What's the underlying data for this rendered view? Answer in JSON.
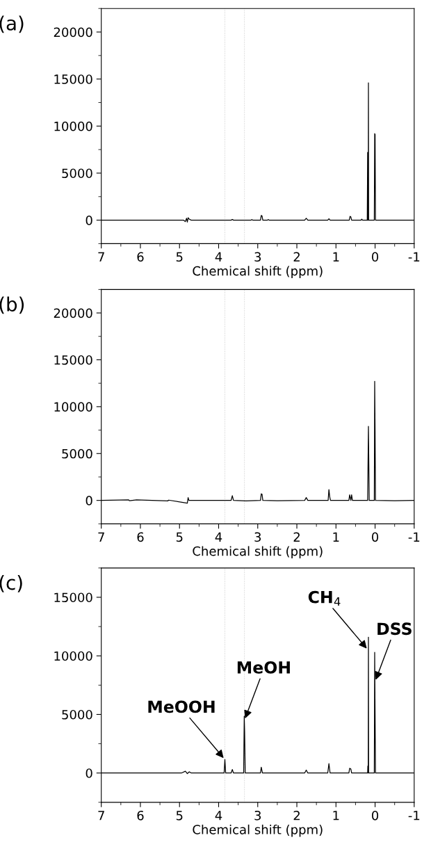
{
  "chart_data": [
    {
      "type": "line",
      "title": "(a)",
      "xlabel": "Chemical shift (ppm)",
      "xlim": [
        7,
        -1
      ],
      "xticks": [
        7,
        6,
        5,
        4,
        3,
        2,
        1,
        0,
        -1
      ],
      "ylim": [
        -2500,
        22500
      ],
      "yticks": [
        0,
        5000,
        10000,
        15000,
        20000
      ],
      "grid": false,
      "legend": false,
      "marker": "none",
      "line_style": "solid",
      "ref_lines": [
        {
          "axis": "x",
          "value": 3.84,
          "color": "#c8c8c8",
          "line_style": "dotted"
        },
        {
          "axis": "x",
          "value": 3.34,
          "color": "#c8c8c8",
          "line_style": "dotted"
        }
      ],
      "series": [
        {
          "color": "#000000",
          "x": [
            7,
            4.9,
            4.85,
            4.82,
            4.8,
            4.78,
            4.75,
            4.7,
            3.68,
            3.65,
            3.62,
            3.17,
            3.15,
            3.13,
            2.93,
            2.91,
            2.89,
            2.87,
            2.75,
            2.73,
            2.71,
            1.8,
            1.76,
            1.72,
            1.21,
            1.18,
            1.15,
            0.66,
            0.64,
            0.62,
            0.6,
            0.36,
            0.34,
            0.32,
            0.2,
            0.19,
            0.185,
            0.175,
            0.17,
            0.165,
            0.02,
            0.01,
            0.0,
            -0.01,
            -1
          ],
          "values": [
            0,
            0,
            -150,
            200,
            -200,
            250,
            100,
            0,
            0,
            80,
            0,
            0,
            60,
            0,
            0,
            500,
            450,
            0,
            0,
            60,
            0,
            0,
            200,
            0,
            0,
            150,
            0,
            0,
            400,
            350,
            0,
            0,
            100,
            0,
            0,
            7200,
            0,
            0,
            14600,
            0,
            0,
            9200,
            9100,
            0,
            0
          ]
        }
      ]
    },
    {
      "type": "line",
      "title": "(b)",
      "xlabel": "Chemical shift (ppm)",
      "xlim": [
        7,
        -1
      ],
      "xticks": [
        7,
        6,
        5,
        4,
        3,
        2,
        1,
        0,
        -1
      ],
      "ylim": [
        -2500,
        22500
      ],
      "yticks": [
        0,
        5000,
        10000,
        15000,
        20000
      ],
      "grid": false,
      "legend": false,
      "marker": "none",
      "line_style": "solid",
      "ref_lines": [
        {
          "axis": "x",
          "value": 3.84,
          "color": "#c8c8c8",
          "line_style": "dotted"
        },
        {
          "axis": "x",
          "value": 3.34,
          "color": "#c8c8c8",
          "line_style": "dotted"
        }
      ],
      "series": [
        {
          "color": "#000000",
          "x": [
            7,
            6.3,
            6.28,
            6.1,
            5.3,
            5.28,
            4.8,
            4.78,
            4.76,
            3.68,
            3.65,
            3.62,
            3.3,
            2.93,
            2.91,
            2.89,
            2.87,
            2.5,
            1.8,
            1.76,
            1.72,
            1.2,
            1.18,
            1.16,
            1.14,
            0.67,
            0.65,
            0.62,
            0.6,
            0.58,
            0.19,
            0.17,
            0.15,
            0.02,
            0.01,
            0.0,
            -0.01,
            -0.5,
            -1
          ],
          "values": [
            0,
            60,
            -40,
            50,
            -60,
            30,
            -300,
            300,
            0,
            0,
            500,
            0,
            -60,
            0,
            700,
            650,
            0,
            -40,
            0,
            300,
            0,
            0,
            1150,
            400,
            0,
            0,
            600,
            0,
            600,
            0,
            0,
            7900,
            0,
            0,
            12700,
            7400,
            0,
            -40,
            0
          ]
        }
      ]
    },
    {
      "type": "line",
      "title": "(c)",
      "xlabel": "Chemical shift (ppm)",
      "xlim": [
        7,
        -1
      ],
      "xticks": [
        7,
        6,
        5,
        4,
        3,
        2,
        1,
        0,
        -1
      ],
      "ylim": [
        -2500,
        17500
      ],
      "yticks": [
        0,
        5000,
        10000,
        15000
      ],
      "grid": false,
      "legend": false,
      "marker": "none",
      "line_style": "solid",
      "ref_lines": [
        {
          "axis": "x",
          "value": 3.84,
          "color": "#c8c8c8",
          "line_style": "dotted"
        },
        {
          "axis": "x",
          "value": 3.34,
          "color": "#c8c8c8",
          "line_style": "dotted"
        }
      ],
      "annotations": [
        {
          "text": "MeOOH",
          "x": 3.84,
          "y": 1150
        },
        {
          "text": "MeOH",
          "x": 3.34,
          "y": 4500
        },
        {
          "text": "CH$_{4}$",
          "x": 0.18,
          "y": 10500
        },
        {
          "text": "DSS",
          "x": 0.0,
          "y": 7800
        }
      ],
      "series": [
        {
          "color": "#000000",
          "x": [
            7,
            4.95,
            4.85,
            4.8,
            4.75,
            4.7,
            3.86,
            3.84,
            3.82,
            3.68,
            3.65,
            3.62,
            3.36,
            3.345,
            3.335,
            3.32,
            2.93,
            2.91,
            2.88,
            1.8,
            1.76,
            1.72,
            1.21,
            1.18,
            1.15,
            0.67,
            0.65,
            0.62,
            0.6,
            0.19,
            0.185,
            0.175,
            0.17,
            0.165,
            0.02,
            0.01,
            0.0,
            -0.01,
            -1
          ],
          "values": [
            0,
            0,
            150,
            -50,
            100,
            0,
            0,
            1150,
            0,
            0,
            300,
            0,
            0,
            4850,
            3500,
            0,
            0,
            500,
            0,
            0,
            250,
            0,
            0,
            800,
            0,
            0,
            400,
            350,
            0,
            0,
            600,
            0,
            11600,
            0,
            0,
            10300,
            5100,
            0,
            0
          ]
        }
      ]
    }
  ]
}
